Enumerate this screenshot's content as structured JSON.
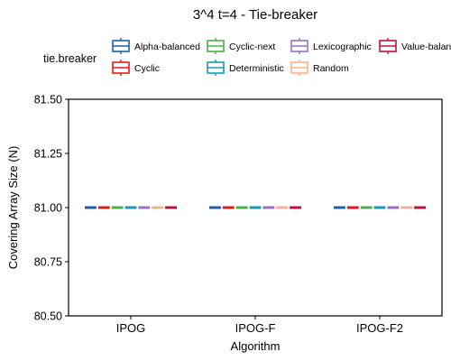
{
  "chart_data": {
    "type": "boxplot",
    "title": "3^4 t=4 - Tie-breaker",
    "xlabel": "Algorithm",
    "ylabel": "Covering Array Size (N)",
    "ylim": [
      80.5,
      81.5
    ],
    "yticks": [
      {
        "value": 80.5,
        "label": "80.50"
      },
      {
        "value": 80.75,
        "label": "80.75"
      },
      {
        "value": 81.0,
        "label": "81.00"
      },
      {
        "value": 81.25,
        "label": "81.25"
      },
      {
        "value": 81.5,
        "label": "81.50"
      }
    ],
    "categories": [
      "IPOG",
      "IPOG-F",
      "IPOG-F2"
    ],
    "grid": false,
    "legend": {
      "title": "tie.breaker",
      "position": "top"
    },
    "series": [
      {
        "name": "Alpha-balanced",
        "color": "#1f5fa6",
        "values": [
          81,
          81,
          81
        ]
      },
      {
        "name": "Cyclic",
        "color": "#e41a1c",
        "values": [
          81,
          81,
          81
        ]
      },
      {
        "name": "Cyclic-next",
        "color": "#4daf4a",
        "values": [
          81,
          81,
          81
        ]
      },
      {
        "name": "Deterministic",
        "color": "#1a9ab5",
        "values": [
          81,
          81,
          81
        ]
      },
      {
        "name": "Lexicographic",
        "color": "#9b70b8",
        "values": [
          81,
          81,
          81
        ]
      },
      {
        "name": "Random",
        "color": "#f4b38e",
        "values": [
          81,
          81,
          81
        ]
      },
      {
        "name": "Value-balanced",
        "color": "#c0123c",
        "values": [
          81,
          81,
          81
        ]
      }
    ]
  }
}
